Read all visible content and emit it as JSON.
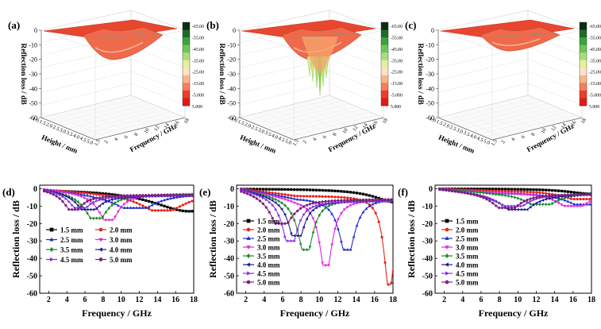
{
  "chart_data": [
    {
      "type": "surface3d",
      "label": "(a)",
      "zlabel": "Reflection loss / dB",
      "xlabel": "Height / mm",
      "ylabel": "Frequency / GHz",
      "zticks": [
        "0",
        "-10",
        "-20",
        "-30",
        "-40",
        "-50",
        "-60"
      ],
      "hticks": [
        "1.0",
        "1.5",
        "2.0",
        "2.5",
        "3.0",
        "3.5",
        "4.0",
        "4.5",
        "5.0"
      ],
      "fticks": [
        "1.5",
        "2",
        "4",
        "6",
        "8",
        "10",
        "12",
        "14",
        "16",
        "18"
      ],
      "colorbar": [
        "-65.00",
        "-55.00",
        "-45.00",
        "-35.00",
        "-25.00",
        "-15.00",
        "-5.000",
        "5.000"
      ],
      "min_rl": -18
    },
    {
      "type": "surface3d",
      "label": "(b)",
      "zlabel": "Reflection loss / dB",
      "xlabel": "Height / mm",
      "ylabel": "Frequency / GHz",
      "zticks": [
        "0",
        "-10",
        "-20",
        "-30",
        "-40",
        "-50",
        "-60"
      ],
      "hticks": [
        "1.0",
        "1.5",
        "2.0",
        "2.5",
        "3.0",
        "3.5",
        "4.0",
        "4.5",
        "5.0"
      ],
      "fticks": [
        "1.5",
        "2",
        "4",
        "6",
        "8",
        "10",
        "12",
        "14",
        "16",
        "18"
      ],
      "colorbar": [
        "-65.00",
        "-55.00",
        "-45.00",
        "-35.00",
        "-25.00",
        "-15.00",
        "-5.000",
        "5.000"
      ],
      "min_rl": -55
    },
    {
      "type": "surface3d",
      "label": "(c)",
      "zlabel": "Reflection loss / dB",
      "xlabel": "Height / mm",
      "ylabel": "Frequency / GHz",
      "zticks": [
        "0",
        "-10",
        "-20",
        "-30",
        "-40",
        "-50",
        "-60"
      ],
      "hticks": [
        "1.0",
        "1.5",
        "2.0",
        "2.5",
        "3.0",
        "3.5",
        "4.0",
        "4.5",
        "5.0"
      ],
      "fticks": [
        "1.5",
        "2",
        "4",
        "6",
        "8",
        "10",
        "12",
        "14",
        "16",
        "18"
      ],
      "colorbar": [
        "-65.00",
        "-55.00",
        "-45.00",
        "-35.00",
        "-25.00",
        "-15.00",
        "-5.000",
        "5.000"
      ],
      "min_rl": -12
    },
    {
      "type": "line",
      "label": "(d)",
      "xlabel": "Frequency / GHz",
      "ylabel": "Reflection loss / dB",
      "xlim": [
        1,
        18
      ],
      "ylim": [
        -60,
        2
      ],
      "xticks": [
        2,
        4,
        6,
        8,
        10,
        12,
        14,
        16,
        18
      ],
      "yticks": [
        0,
        -10,
        -20,
        -30,
        -40,
        -50,
        -60
      ],
      "legend_layout": "two-column",
      "series": [
        {
          "name": "1.5 mm",
          "color": "#000000",
          "marker": "square",
          "f0": 17.5,
          "depth": -13,
          "width": 5,
          "base": 0
        },
        {
          "name": "2.0 mm",
          "color": "#e8231b",
          "marker": "circle",
          "f0": 14.5,
          "depth": -12.5,
          "width": 3,
          "base": -1.5
        },
        {
          "name": "2.5 mm",
          "color": "#1f2dc9",
          "marker": "triangle-up",
          "f0": 11.5,
          "depth": -11,
          "width": 2.5,
          "base": -2.5
        },
        {
          "name": "3.0 mm",
          "color": "#e622e0",
          "marker": "triangle-down",
          "f0": 8.6,
          "depth": -18,
          "width": 1.2,
          "base": -3
        },
        {
          "name": "3.5 mm",
          "color": "#1c8a2c",
          "marker": "diamond",
          "f0": 7.2,
          "depth": -17,
          "width": 1.4,
          "base": -3
        },
        {
          "name": "4.0 mm",
          "color": "#1b1b8f",
          "marker": "triangle-left",
          "f0": 6.3,
          "depth": -12,
          "width": 1.3,
          "base": -4
        },
        {
          "name": "4.5 mm",
          "color": "#8a2be2",
          "marker": "triangle-right",
          "f0": 5.4,
          "depth": -11,
          "width": 1.2,
          "base": -4
        },
        {
          "name": "5.0 mm",
          "color": "#7b1f7f",
          "marker": "hexagon",
          "f0": 4.7,
          "depth": -12,
          "width": 1.2,
          "base": -3.5
        }
      ]
    },
    {
      "type": "line",
      "label": "(e)",
      "xlabel": "Frequency / GHz",
      "ylabel": "Reflection loss / dB",
      "xlim": [
        1,
        18
      ],
      "ylim": [
        -60,
        2
      ],
      "xticks": [
        2,
        4,
        6,
        8,
        10,
        12,
        14,
        16,
        18
      ],
      "yticks": [
        0,
        -10,
        -20,
        -30,
        -40,
        -50,
        -60
      ],
      "legend_layout": "one-column",
      "series": [
        {
          "name": "1.5 mm",
          "color": "#000000",
          "marker": "square",
          "f0": 18.5,
          "depth": -8,
          "width": 3,
          "base": 0
        },
        {
          "name": "2.0 mm",
          "color": "#e8231b",
          "marker": "circle",
          "f0": 17.6,
          "depth": -55,
          "width": 0.7,
          "base": -4
        },
        {
          "name": "2.5 mm",
          "color": "#1f2dc9",
          "marker": "triangle-up",
          "f0": 13.0,
          "depth": -35,
          "width": 1.0,
          "base": -5
        },
        {
          "name": "3.0 mm",
          "color": "#e622e0",
          "marker": "triangle-down",
          "f0": 10.7,
          "depth": -44,
          "width": 0.8,
          "base": -6
        },
        {
          "name": "3.5 mm",
          "color": "#1c8a2c",
          "marker": "diamond",
          "f0": 8.5,
          "depth": -35,
          "width": 0.9,
          "base": -6
        },
        {
          "name": "4.0 mm",
          "color": "#1b1b8f",
          "marker": "triangle-left",
          "f0": 7.5,
          "depth": -27,
          "width": 0.9,
          "base": -7
        },
        {
          "name": "4.5 mm",
          "color": "#8a2be2",
          "marker": "triangle-right",
          "f0": 6.8,
          "depth": -30,
          "width": 0.9,
          "base": -7
        },
        {
          "name": "5.0 mm",
          "color": "#7b1f7f",
          "marker": "hexagon",
          "f0": 5.8,
          "depth": -20,
          "width": 1.3,
          "base": -6
        }
      ]
    },
    {
      "type": "line",
      "label": "(f)",
      "xlabel": "Frequency / GHz",
      "ylabel": "Reflection loss / dB",
      "xlim": [
        1,
        18
      ],
      "ylim": [
        -60,
        2
      ],
      "xticks": [
        2,
        4,
        6,
        8,
        10,
        12,
        14,
        16,
        18
      ],
      "yticks": [
        0,
        -10,
        -20,
        -30,
        -40,
        -50,
        -60
      ],
      "legend_layout": "one-column",
      "series": [
        {
          "name": "1.5 mm",
          "color": "#000000",
          "marker": "square",
          "f0": 18,
          "depth": -3,
          "width": 3,
          "base": 0
        },
        {
          "name": "2.0 mm",
          "color": "#e8231b",
          "marker": "circle",
          "f0": 17,
          "depth": -6,
          "width": 2.5,
          "base": -1
        },
        {
          "name": "2.5 mm",
          "color": "#1f2dc9",
          "marker": "triangle-up",
          "f0": 17.5,
          "depth": -9,
          "width": 2.5,
          "base": -2
        },
        {
          "name": "3.0 mm",
          "color": "#e622e0",
          "marker": "triangle-down",
          "f0": 16.0,
          "depth": -10,
          "width": 2,
          "base": -2
        },
        {
          "name": "3.5 mm",
          "color": "#1c8a2c",
          "marker": "diamond",
          "f0": 12.5,
          "depth": -9,
          "width": 2,
          "base": -2
        },
        {
          "name": "4.0 mm",
          "color": "#1b1b8f",
          "marker": "triangle-left",
          "f0": 10.0,
          "depth": -12,
          "width": 1.8,
          "base": -3
        },
        {
          "name": "4.5 mm",
          "color": "#8a2be2",
          "marker": "triangle-right",
          "f0": 9.5,
          "depth": -10,
          "width": 1.6,
          "base": -3
        },
        {
          "name": "5.0 mm",
          "color": "#7b1f7f",
          "marker": "hexagon",
          "f0": 8.8,
          "depth": -11,
          "width": 1.5,
          "base": -3
        }
      ]
    }
  ]
}
